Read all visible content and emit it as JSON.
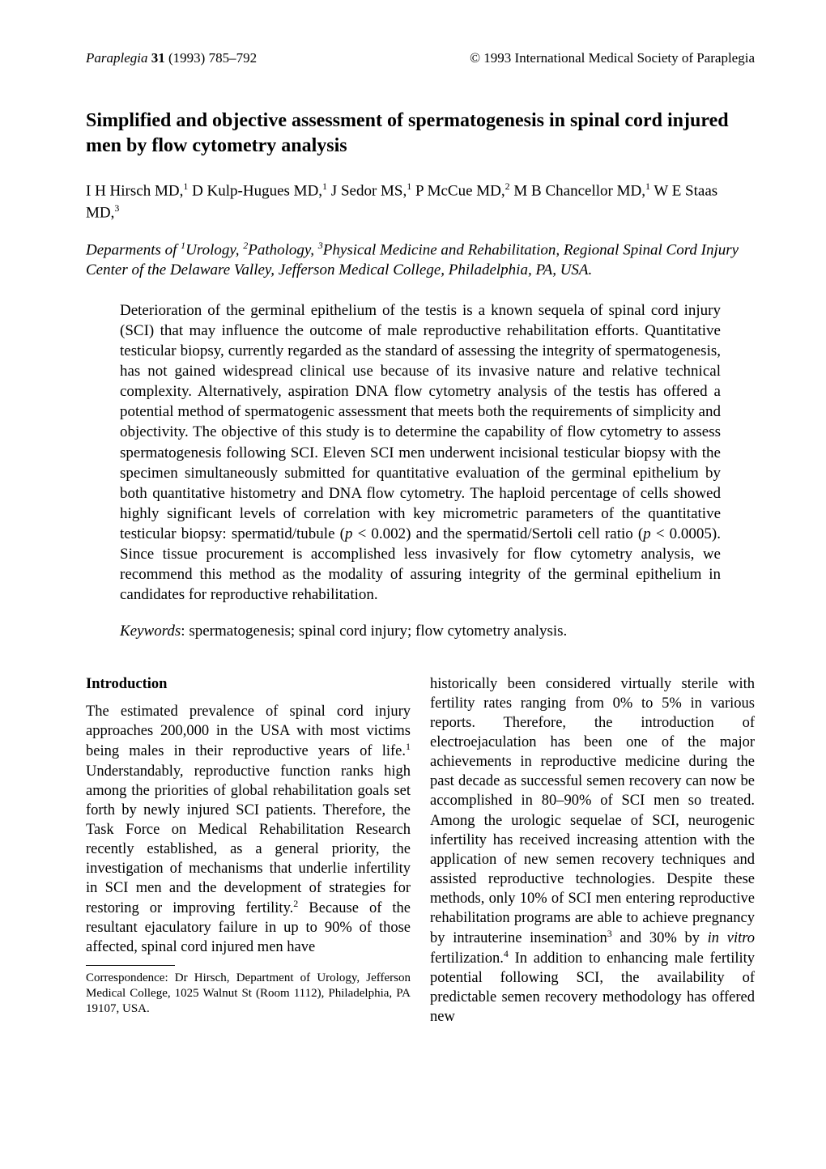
{
  "header": {
    "journal": "Paraplegia",
    "volume": "31",
    "year_pages": "(1993) 785–792",
    "copyright": "© 1993 International Medical Society of Paraplegia"
  },
  "title": "Simplified and objective assessment of spermatogenesis in spinal cord injured men by flow cytometry analysis",
  "authors_html": "I H Hirsch MD,<sup>1</sup> D Kulp-Hugues MD,<sup>1</sup> J Sedor MS,<sup>1</sup> P McCue MD,<sup>2</sup> M B Chancellor MD,<sup>1</sup> W E Staas MD,<sup>3</sup>",
  "affiliations_html": "Deparments of <sup>1</sup>Urology, <sup>2</sup>Pathology, <sup>3</sup>Physical Medicine and Rehabilitation, Regional Spinal Cord Injury Center of the Delaware Valley, Jefferson Medical College, Philadelphia, PA, USA.",
  "abstract_html": "Deterioration of the germinal epithelium of the testis is a known sequela of spinal cord injury (SCI) that may influence the outcome of male reproductive rehabilitation efforts. Quantitative testicular biopsy, currently regarded as the standard of assessing the integrity of spermatogenesis, has not gained widespread clinical use because of its invasive nature and relative technical complexity. Alternatively, aspiration DNA flow cytometry analysis of the testis has offered a potential method of spermatogenic assessment that meets both the requirements of simplicity and objectivity. The objective of this study is to determine the capability of flow cytometry to assess spermatogenesis following SCI. Eleven SCI men underwent incisional testicular biopsy with the specimen simultaneously submitted for quantitative evaluation of the germinal epithelium by both quantitative histometry and DNA flow cytometry. The haploid percentage of cells showed highly significant levels of correlation with key micrometric parameters of the quantitative testicular biopsy: spermatid/tubule (<span class=\"ital\">p</span> &lt; 0.002) and the spermatid/Sertoli cell ratio (<span class=\"ital\">p</span> &lt; 0.0005). Since tissue procurement is accomplished less invasively for flow cytometry analysis, we recommend this method as the modality of assuring integrity of the germinal epithelium in candidates for reproductive rehabilitation.",
  "keywords": {
    "label": "Keywords",
    "text": ": spermatogenesis; spinal cord injury; flow cytometry analysis."
  },
  "intro_heading": "Introduction",
  "col_left_html": "The estimated prevalence of spinal cord injury approaches 200,000 in the USA with most victims being males in their reproductive years of life.<sup class=\"ref\">1</sup> Understandably, reproductive function ranks high among the priorities of global rehabilitation goals set forth by newly injured SCI patients. Therefore, the Task Force on Medical Rehabilitation Research recently established, as a general priority, the investigation of mechanisms that underlie infertility in SCI men and the development of strategies for restoring or improving fertility.<sup class=\"ref\">2</sup> Because of the resultant ejaculatory failure in up to 90% of those affected, spinal cord injured men have",
  "col_right_html": "historically been considered virtually sterile with fertility rates ranging from 0% to 5% in various reports. Therefore, the introduction of electroejaculation has been one of the major achievements in reproductive medicine during the past decade as successful semen recovery can now be accomplished in 80–90% of SCI men so treated. Among the urologic sequelae of SCI, neurogenic infertility has received increasing attention with the application of new semen recovery techniques and assisted reproductive technologies. Despite these methods, only 10% of SCI men entering reproductive rehabilitation programs are able to achieve pregnancy by intrauterine insemination<sup class=\"ref\">3</sup> and 30% by <span class=\"ital\">in vitro</span> fertilization.<sup class=\"ref\">4</sup> In addition to enhancing male fertility potential following SCI, the availability of predictable semen recovery methodology has offered new",
  "footnote": "Correspondence: Dr Hirsch, Department of Urology, Jefferson Medical College, 1025 Walnut St (Room 1112), Philadelphia, PA 19107, USA.",
  "style": {
    "page_bg": "#ffffff",
    "text_color": "#000000",
    "body_fontsize": 18.5,
    "title_fontsize": 24,
    "abstract_fontsize": 19,
    "footnote_fontsize": 15,
    "line_height": 1.3
  }
}
